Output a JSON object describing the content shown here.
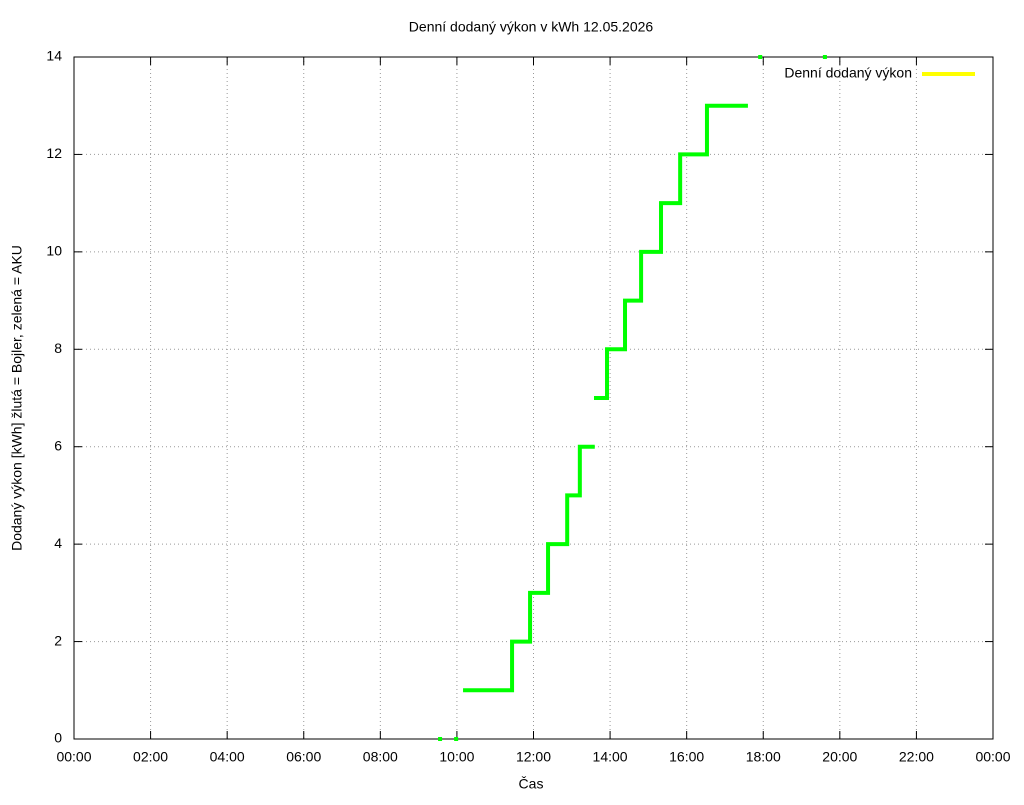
{
  "chart_data": {
    "type": "line",
    "title": "Denní dodaný výkon v kWh 12.05.2026",
    "x_label": "Čas",
    "y_label": "Dodaný výkon [kWh]  žlutá = Bojler, zelená = AKU",
    "xlim": [
      0,
      24
    ],
    "xticks": [
      {
        "value": 0,
        "label": "00:00"
      },
      {
        "value": 2,
        "label": "02:00"
      },
      {
        "value": 4,
        "label": "04:00"
      },
      {
        "value": 6,
        "label": "06:00"
      },
      {
        "value": 8,
        "label": "08:00"
      },
      {
        "value": 10,
        "label": "10:00"
      },
      {
        "value": 12,
        "label": "12:00"
      },
      {
        "value": 14,
        "label": "14:00"
      },
      {
        "value": 16,
        "label": "16:00"
      },
      {
        "value": 18,
        "label": "18:00"
      },
      {
        "value": 20,
        "label": "20:00"
      },
      {
        "value": 22,
        "label": "22:00"
      },
      {
        "value": 24,
        "label": "00:00"
      }
    ],
    "ylim": [
      0,
      14
    ],
    "yticks": [
      0,
      2,
      4,
      6,
      8,
      10,
      12,
      14
    ],
    "grid": true,
    "legend": "top-right",
    "series": [
      {
        "name": "Denní dodaný výkon",
        "color": "#00ff00",
        "legend_color": "#ffff00",
        "x": [
          9.56,
          null,
          9.98,
          null,
          10.16,
          11.44,
          11.44,
          11.91,
          11.91,
          12.38,
          12.38,
          12.88,
          12.88,
          13.21,
          13.21,
          13.6,
          null,
          13.58,
          13.92,
          13.92,
          14.39,
          14.39,
          14.81,
          14.81,
          15.33,
          15.33,
          15.83,
          15.83,
          16.53,
          16.53,
          17.6,
          null,
          17.92,
          null,
          19.61
        ],
        "values": [
          0,
          null,
          0,
          null,
          1,
          1,
          2,
          2,
          3,
          3,
          4,
          4,
          5,
          5,
          6,
          6,
          null,
          7,
          7,
          8,
          8,
          9,
          9,
          10,
          10,
          11,
          11,
          12,
          12,
          13,
          13,
          null,
          14,
          null,
          14
        ]
      }
    ]
  }
}
